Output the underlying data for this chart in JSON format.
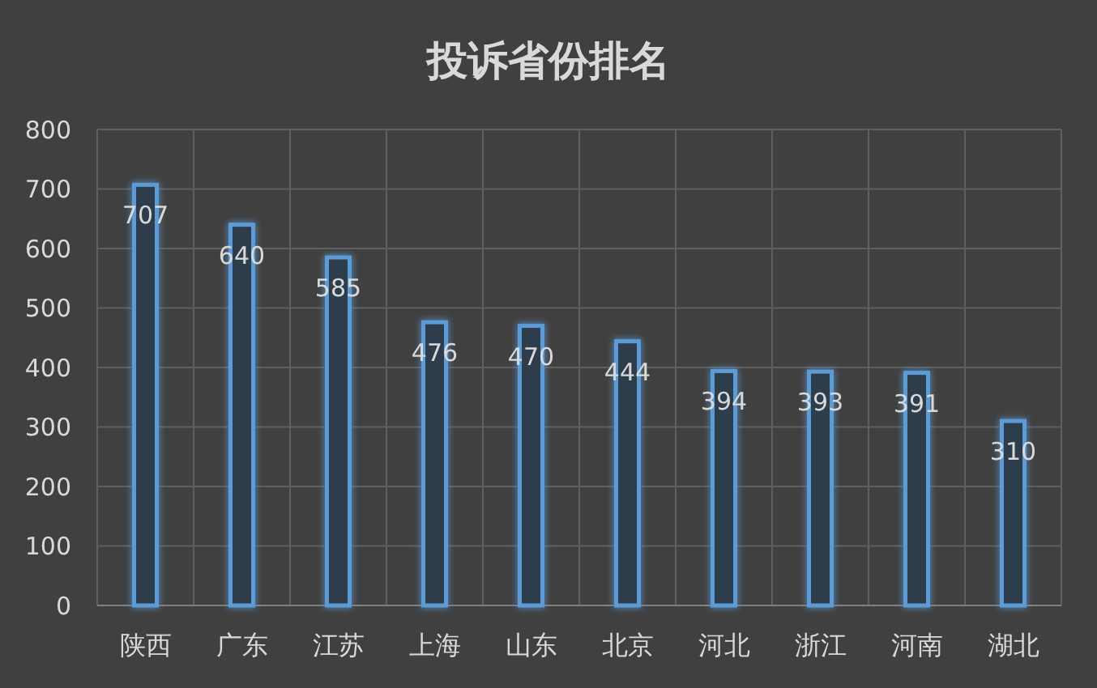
{
  "chart_data": {
    "type": "bar",
    "title": "投诉省份排名",
    "categories": [
      "陕西",
      "广东",
      "江苏",
      "上海",
      "山东",
      "北京",
      "河北",
      "浙江",
      "河南",
      "湖北"
    ],
    "values": [
      707,
      640,
      585,
      476,
      470,
      444,
      394,
      393,
      391,
      310
    ],
    "color": "#5b9bd5",
    "ylim": [
      0,
      800
    ],
    "yticks": [
      0,
      100,
      200,
      300,
      400,
      500,
      600,
      700,
      800
    ],
    "grid": true,
    "data_labels": true
  }
}
